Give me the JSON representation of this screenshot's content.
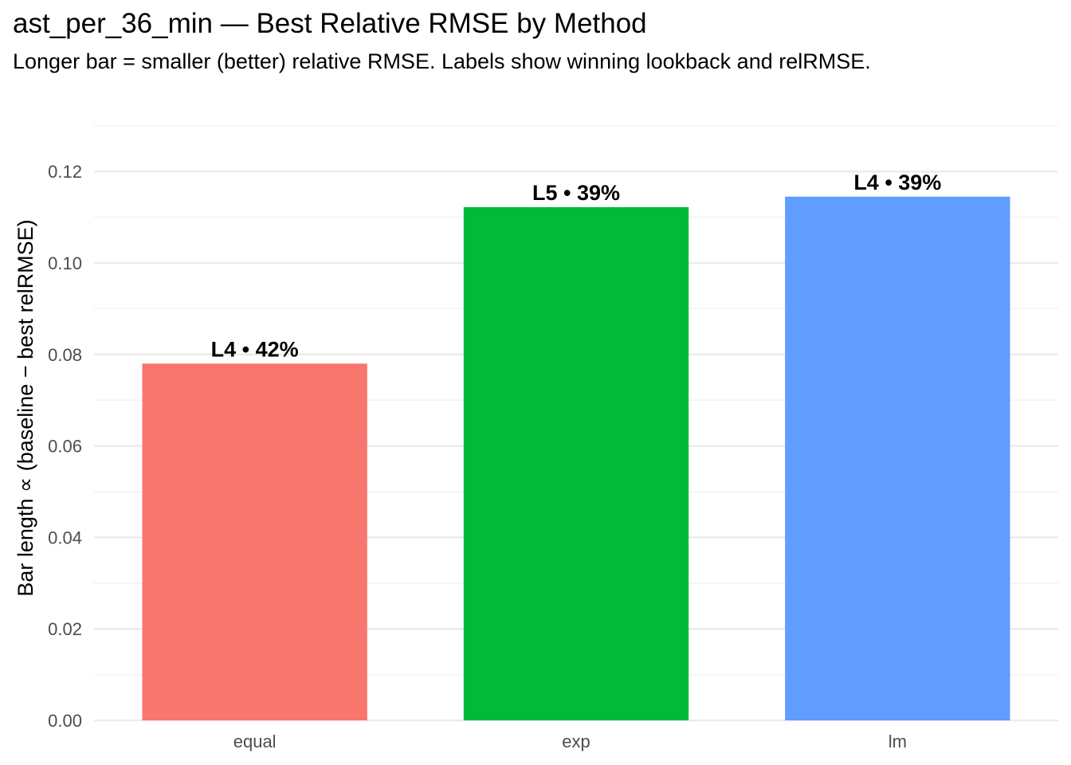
{
  "chart_data": {
    "type": "bar",
    "title": "ast_per_36_min — Best Relative RMSE by Method",
    "subtitle": "Longer bar = smaller (better) relative RMSE. Labels show winning lookback and relRMSE.",
    "xlabel": "",
    "ylabel": "Bar length ∝ (baseline − best relRMSE)",
    "categories": [
      "equal",
      "exp",
      "lm"
    ],
    "values": [
      0.078,
      0.1122,
      0.1145
    ],
    "bar_labels": [
      "L4 • 42%",
      "L5 • 39%",
      "L4 • 39%"
    ],
    "colors": [
      "#F8766D",
      "#00BA38",
      "#619CFF"
    ],
    "ylim": [
      0,
      0.13
    ],
    "yticks": [
      0.0,
      0.02,
      0.04,
      0.06,
      0.08,
      0.1,
      0.12
    ],
    "ytick_labels": [
      "0.00",
      "0.02",
      "0.04",
      "0.06",
      "0.08",
      "0.10",
      "0.12"
    ],
    "grid": true,
    "legend": "none"
  }
}
